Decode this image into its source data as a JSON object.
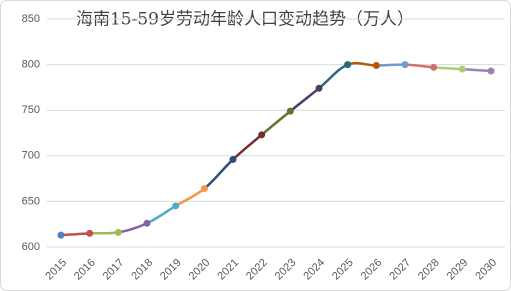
{
  "chart_data": {
    "type": "line",
    "title": "海南15-59岁劳动年龄人口变动趋势（万人）",
    "categories": [
      "2015",
      "2016",
      "2017",
      "2018",
      "2019",
      "2020",
      "2021",
      "2022",
      "2023",
      "2024",
      "2025",
      "2026",
      "2027",
      "2028",
      "2029",
      "2030"
    ],
    "values": [
      613,
      615,
      616,
      626,
      645,
      664,
      696,
      723,
      749,
      774,
      800,
      799,
      800,
      797,
      795,
      793
    ],
    "point_colors": [
      "#4f81bd",
      "#c0504d",
      "#9bbb59",
      "#8064a2",
      "#4bacc6",
      "#f79646",
      "#2c4d75",
      "#772c2a",
      "#5f7530",
      "#4d3b62",
      "#276a7c",
      "#b65708",
      "#729aca",
      "#d0706e",
      "#b0cb7a",
      "#9983b5"
    ],
    "ylim": [
      600,
      850
    ],
    "yticks": [
      600,
      650,
      700,
      750,
      800,
      850
    ],
    "grid": true,
    "smooth": true
  }
}
